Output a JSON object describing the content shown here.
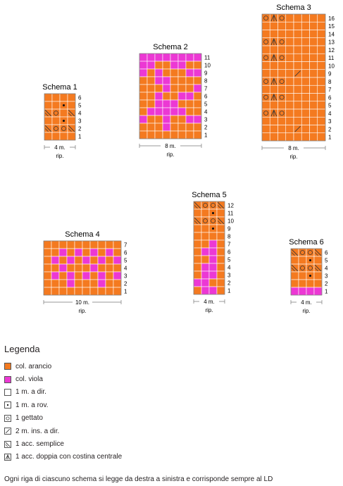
{
  "colors": {
    "orange": "#f47a20",
    "purple": "#ec38d4",
    "line": "#3a3a3a"
  },
  "schemas": [
    {
      "title": "Schema 1",
      "stitches": "4 m.",
      "rep": "rip.",
      "rows": [
        "OOOO",
        "OO*O",
        "XoOX",
        "OO*O",
        "XooX",
        "OOOO"
      ]
    },
    {
      "title": "Schema 2",
      "stitches": "8 m.",
      "rep": "rip.",
      "rows": [
        "PPPPPPPP",
        "PPOOPPOO",
        "POPOOOPP",
        "OOPPOOOO",
        "OOOPOOOP",
        "OOPOOPPO",
        "OOPPPOOO",
        "OPPPPPOO",
        "POOPOOPP",
        "OOOPOOOO",
        "OOOOOOOO"
      ]
    },
    {
      "title": "Schema 3",
      "stitches": "8 m.",
      "rep": "rip.",
      "rows": [
        "oAoOOOOO",
        "OOOOOOOO",
        "OOOOOOOO",
        "oAoOOOOO",
        "OOOOOOOO",
        "oAoOOOOO",
        "OOOOOOOO",
        "OOOO/OOO",
        "oAoOOOOO",
        "OOOOOOOO",
        "oAoOOOOO",
        "OOOOOOOO",
        "oAoOOOOO",
        "OOOOOOOO",
        "OOOO/OOO",
        "OOOOOOOO"
      ]
    },
    {
      "title": "Schema 4",
      "stitches": "10 m.",
      "rep": "rip.",
      "rows": [
        "OOOOOOOOOO",
        "OOPOPOPOPO",
        "OPOPOPOPOP",
        "OOPOOOPOOO",
        "OPOPOPOPOP",
        "OOOPOOOPOO",
        "OOOOOOOOOO"
      ]
    },
    {
      "title": "Schema 5",
      "stitches": "4 m.",
      "rep": "rip.",
      "rows": [
        "XooX",
        "OO*O",
        "XooX",
        "OO*O",
        "OOOO",
        "OOPO",
        "OPPO",
        "OOPO",
        "OPPO",
        "OPPO",
        "PPOO",
        "OPPO"
      ]
    },
    {
      "title": "Schema 6",
      "stitches": "4 m.",
      "rep": "rip.",
      "rows": [
        "XooX",
        "OO*O",
        "XooX",
        "OO*O",
        "OOOO",
        "PPPP"
      ]
    }
  ],
  "legend": {
    "title": "Legenda",
    "items": [
      {
        "icon": "orange-square",
        "label": "col. arancio"
      },
      {
        "icon": "purple-square",
        "label": "col. viola"
      },
      {
        "icon": "empty-square",
        "label": "1 m. a dir."
      },
      {
        "icon": "dot-square",
        "label": "1 m. a rov."
      },
      {
        "icon": "circle-square",
        "label": "1 gettato"
      },
      {
        "icon": "slash-square",
        "label": "2 m. ins. a dir."
      },
      {
        "icon": "cross-square",
        "label": "1 acc. semplice"
      },
      {
        "icon": "double-dec-square",
        "label": "1 acc. doppia con costina centrale"
      }
    ],
    "note": "Ogni riga di ciascuno schema si legge da destra a sinistra e corrisponde sempre al LD"
  }
}
